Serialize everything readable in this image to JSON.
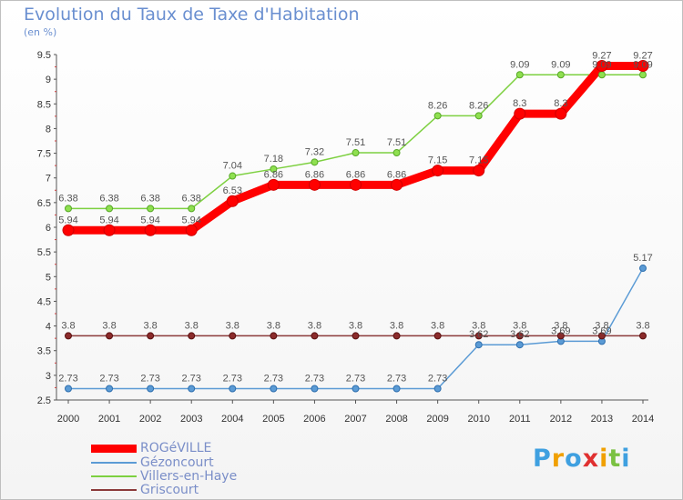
{
  "chart_data": {
    "type": "line",
    "title": "Evolution du Taux de Taxe d'Habitation",
    "unit_label": "(en %)",
    "x": [
      "2000",
      "2001",
      "2002",
      "2003",
      "2004",
      "2005",
      "2006",
      "2007",
      "2008",
      "2009",
      "2010",
      "2011",
      "2012",
      "2013",
      "2014"
    ],
    "ylim": [
      2.5,
      9.5
    ],
    "yticks": [
      "2.5",
      "3",
      "3.5",
      "4",
      "4.5",
      "5",
      "5.5",
      "6",
      "6.5",
      "7",
      "7.5",
      "8",
      "8.5",
      "9",
      "9.5"
    ],
    "grid": false,
    "legend_position": "bottom-left",
    "series": [
      {
        "name": "ROGéVILLE",
        "color": "#ff0000",
        "values": [
          5.94,
          5.94,
          5.94,
          5.94,
          6.53,
          6.86,
          6.86,
          6.86,
          6.86,
          7.15,
          7.15,
          8.3,
          8.3,
          9.27,
          9.27
        ],
        "labels": [
          "5.94",
          "5.94",
          "5.94",
          "5.94",
          "6.53",
          "6.86",
          "6.86",
          "6.86",
          "6.86",
          "7.15",
          "7.15",
          "8.3",
          "8.3",
          "9.27",
          "9.27"
        ]
      },
      {
        "name": "Gézoncourt",
        "color": "#5b9bd5",
        "values": [
          2.73,
          2.73,
          2.73,
          2.73,
          2.73,
          2.73,
          2.73,
          2.73,
          2.73,
          2.73,
          3.62,
          3.62,
          3.69,
          3.69,
          5.17
        ],
        "labels": [
          "2.73",
          "2.73",
          "2.73",
          "2.73",
          "2.73",
          "2.73",
          "2.73",
          "2.73",
          "2.73",
          "2.73",
          "3.62",
          "3.62",
          "3.69",
          "3.69",
          "5.17"
        ]
      },
      {
        "name": "Villers-en-Haye",
        "color": "#7dd040",
        "values": [
          6.38,
          6.38,
          6.38,
          6.38,
          7.04,
          7.18,
          7.32,
          7.51,
          7.51,
          8.26,
          8.26,
          9.09,
          9.09,
          9.09,
          9.09
        ],
        "labels": [
          "6.38",
          "6.38",
          "6.38",
          "6.38",
          "7.04",
          "7.18",
          "7.32",
          "7.51",
          "7.51",
          "8.26",
          "8.26",
          "9.09",
          "9.09",
          "9.09",
          "9.09"
        ]
      },
      {
        "name": "Griscourt",
        "color": "#8b3a3a",
        "values": [
          3.8,
          3.8,
          3.8,
          3.8,
          3.8,
          3.8,
          3.8,
          3.8,
          3.8,
          3.8,
          3.8,
          3.8,
          3.8,
          3.8,
          3.8
        ],
        "labels": [
          "3.8",
          "3.8",
          "3.8",
          "3.8",
          "3.8",
          "3.8",
          "3.8",
          "3.8",
          "3.8",
          "3.8",
          "3.8",
          "3.8",
          "3.8",
          "3.8",
          "3.8"
        ]
      }
    ]
  },
  "logo": {
    "text": "Proxiti",
    "letters": [
      "P",
      "r",
      "o",
      "x",
      "i",
      "t",
      "i"
    ],
    "colors": [
      "#3fa0e0",
      "#f0a000",
      "#3fa0e0",
      "#e03030",
      "#f0a000",
      "#7ac142",
      "#3fa0e0"
    ]
  }
}
